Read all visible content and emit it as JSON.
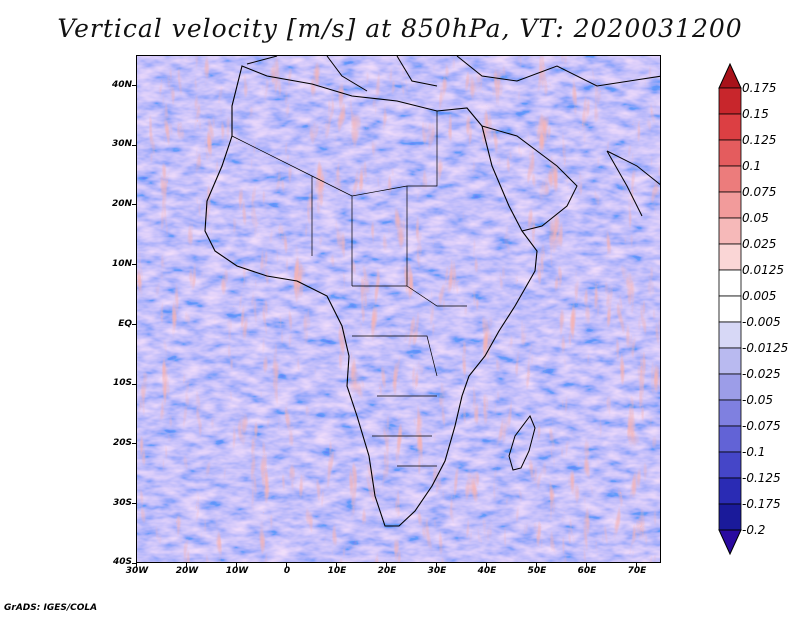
{
  "title": "Vertical velocity [m/s] at 850hPa, VT: 2020031200",
  "map": {
    "variable": "Vertical velocity",
    "units": "m/s",
    "level": "850hPa",
    "valid_time": "2020031200",
    "region": "Africa",
    "lon_range": [
      -30,
      75
    ],
    "lat_range": [
      -40,
      45
    ]
  },
  "lat_ticks": [
    "40N",
    "30N",
    "20N",
    "10N",
    "EQ",
    "10S",
    "20S",
    "30S",
    "40S"
  ],
  "lat_values": [
    40,
    30,
    20,
    10,
    0,
    -10,
    -20,
    -30,
    -40
  ],
  "lon_ticks": [
    "30W",
    "20W",
    "10W",
    "0",
    "10E",
    "20E",
    "30E",
    "40E",
    "50E",
    "60E",
    "70E"
  ],
  "lon_values": [
    -30,
    -20,
    -10,
    0,
    10,
    20,
    30,
    40,
    50,
    60,
    70
  ],
  "colorbar": {
    "labels": [
      "0.175",
      "0.15",
      "0.125",
      "0.1",
      "0.075",
      "0.05",
      "0.025",
      "0.0125",
      "0.005",
      "-0.005",
      "-0.0125",
      "-0.025",
      "-0.05",
      "-0.075",
      "-0.1",
      "-0.125",
      "-0.175",
      "-0.2"
    ],
    "colors": [
      "#a8121a",
      "#c8262c",
      "#dc3f43",
      "#e45c5e",
      "#ec7c7c",
      "#f29b9b",
      "#f6b9b9",
      "#fad6d6",
      "#ffffff",
      "#ffffff",
      "#d7d8f6",
      "#b9baf0",
      "#9c9de8",
      "#7f80e0",
      "#6263d6",
      "#4546c8",
      "#2a2bb4",
      "#1a1a9a",
      "#2a0aa0"
    ]
  },
  "credit": "GrADS: IGES/COLA"
}
